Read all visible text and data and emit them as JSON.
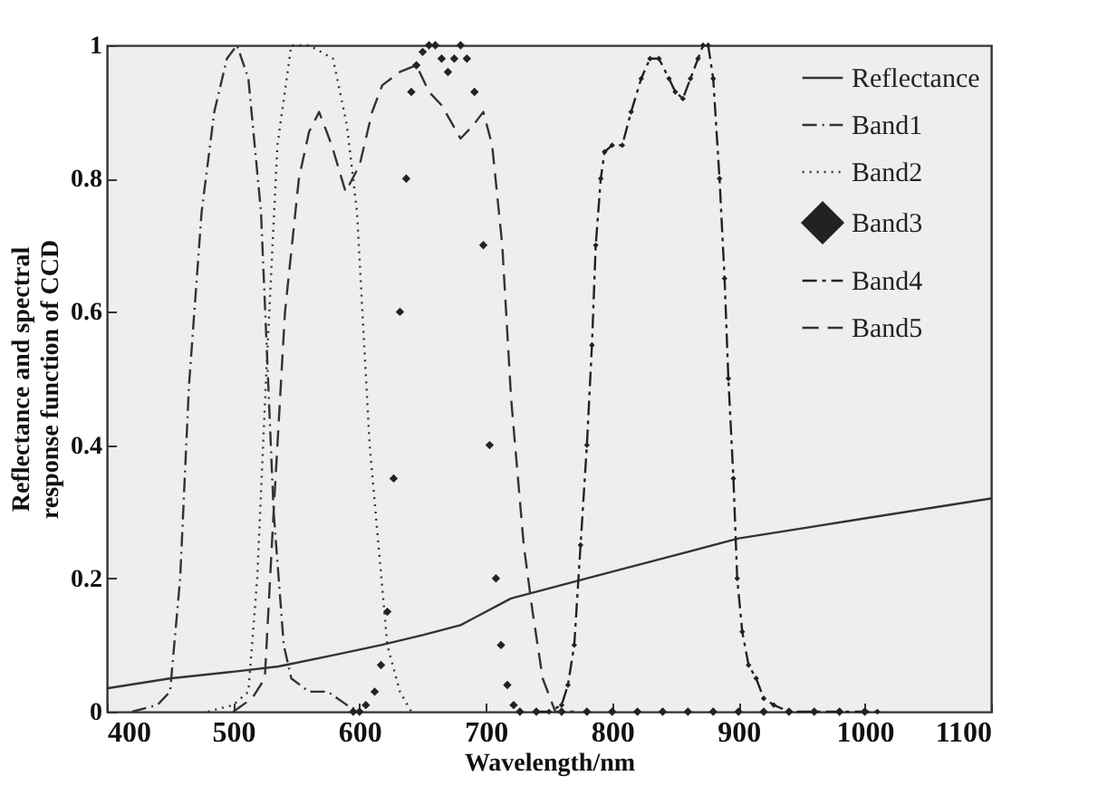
{
  "chart_data": {
    "type": "line",
    "xlabel": "Wavelength/nm",
    "ylabel": "Reflectance and spectral\nresponse function of CCD",
    "xlim": [
      400,
      1100
    ],
    "ylim": [
      0,
      1
    ],
    "xticks": [
      400,
      500,
      600,
      700,
      800,
      900,
      1000,
      1100
    ],
    "yticks": [
      0,
      0.2,
      0.4,
      0.6,
      0.8,
      1
    ],
    "grid": false,
    "legend": "top right",
    "series": [
      {
        "name": "Reflectance",
        "color": "#333333",
        "line_style": "solid",
        "marker": "none",
        "x": [
          400,
          450,
          500,
          536,
          580,
          617,
          650,
          680,
          690,
          720,
          760,
          800,
          850,
          900,
          950,
          1000,
          1050,
          1100
        ],
        "values": [
          0.035,
          0.05,
          0.06,
          0.068,
          0.085,
          0.1,
          0.115,
          0.13,
          0.14,
          0.17,
          0.19,
          0.21,
          0.235,
          0.26,
          0.275,
          0.29,
          0.305,
          0.32
        ]
      },
      {
        "name": "Band1",
        "color": "#333333",
        "line_style": "dashdot",
        "marker": "none",
        "x": [
          420,
          440,
          450,
          458,
          465,
          475,
          485,
          495,
          503,
          512,
          522,
          532,
          540,
          546,
          560,
          575,
          590,
          600
        ],
        "values": [
          0,
          0.01,
          0.03,
          0.2,
          0.49,
          0.75,
          0.9,
          0.98,
          1,
          0.95,
          0.75,
          0.3,
          0.1,
          0.05,
          0.03,
          0.03,
          0.01,
          0
        ]
      },
      {
        "name": "Band2",
        "color": "#333333",
        "line_style": "dotted",
        "marker": "none",
        "x": [
          480,
          500,
          512,
          519,
          526,
          535,
          546,
          560,
          579,
          590,
          598,
          608,
          622,
          632,
          641
        ],
        "values": [
          0,
          0.01,
          0.03,
          0.2,
          0.5,
          0.85,
          1,
          1,
          0.98,
          0.88,
          0.75,
          0.4,
          0.1,
          0.03,
          0
        ]
      },
      {
        "name": "Band3",
        "type": "scatter",
        "color": "#222222",
        "marker": "diamond",
        "x": [
          595,
          600,
          605,
          612,
          617,
          622,
          627,
          632,
          637,
          641,
          645,
          650,
          655,
          660,
          665,
          670,
          675,
          680,
          685,
          691,
          698,
          703,
          708,
          712,
          717,
          722,
          727,
          740,
          760,
          780,
          800,
          820,
          840,
          860,
          880,
          900,
          920,
          940,
          960,
          980,
          1000
        ],
        "values": [
          0,
          0,
          0.01,
          0.03,
          0.07,
          0.15,
          0.35,
          0.6,
          0.8,
          0.93,
          0.97,
          0.99,
          1,
          1,
          0.98,
          0.96,
          0.98,
          1,
          0.98,
          0.93,
          0.7,
          0.4,
          0.2,
          0.1,
          0.04,
          0.01,
          0,
          0,
          0,
          0,
          0,
          0,
          0,
          0,
          0,
          0,
          0,
          0,
          0,
          0,
          0
        ]
      },
      {
        "name": "Band4",
        "color": "#222222",
        "line_style": "dashed",
        "marker": "diamond",
        "x": [
          740,
          750,
          760,
          765,
          770,
          775,
          780,
          784,
          787,
          791,
          794,
          800,
          808,
          815,
          823,
          830,
          837,
          845,
          850,
          856,
          862,
          868,
          872,
          876,
          880,
          885,
          889,
          892,
          896,
          899,
          903,
          908,
          914,
          920,
          928,
          940,
          960,
          980,
          1000,
          1010
        ],
        "values": [
          0,
          0,
          0.01,
          0.04,
          0.1,
          0.25,
          0.4,
          0.55,
          0.7,
          0.8,
          0.84,
          0.85,
          0.85,
          0.9,
          0.95,
          0.98,
          0.98,
          0.95,
          0.93,
          0.92,
          0.95,
          0.98,
          1,
          1,
          0.95,
          0.8,
          0.65,
          0.5,
          0.35,
          0.2,
          0.12,
          0.07,
          0.05,
          0.02,
          0.01,
          0,
          0,
          0,
          0,
          0
        ]
      },
      {
        "name": "Band5",
        "color": "#333333",
        "line_style": "longdash",
        "marker": "none",
        "x": [
          500,
          515,
          525,
          532,
          541,
          552,
          560,
          568,
          578,
          589,
          600,
          610,
          618,
          632,
          645,
          655,
          665,
          680,
          690,
          698,
          705,
          713,
          720,
          730,
          737,
          745,
          755,
          770
        ],
        "values": [
          0,
          0.02,
          0.05,
          0.3,
          0.6,
          0.8,
          0.87,
          0.9,
          0.85,
          0.78,
          0.82,
          0.9,
          0.94,
          0.96,
          0.97,
          0.93,
          0.91,
          0.86,
          0.88,
          0.9,
          0.85,
          0.7,
          0.47,
          0.25,
          0.15,
          0.05,
          0,
          0
        ]
      }
    ]
  }
}
